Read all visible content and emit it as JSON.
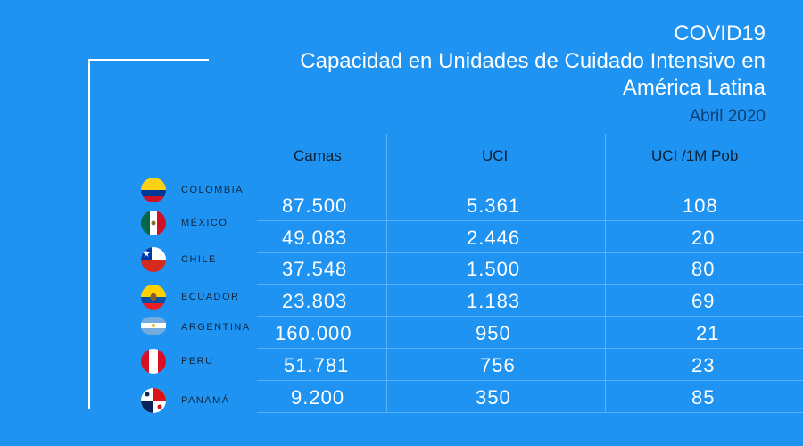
{
  "title": {
    "line1": "COVID19",
    "line2": "Capacidad en Unidades de Cuidado Intensivo en",
    "line3": "América Latina",
    "date": "Abril 2020"
  },
  "colors": {
    "background": "#1f93f2",
    "text": "#ffffff",
    "header_text": "#0c1f33",
    "date_text": "#0d3f73"
  },
  "chart_data": {
    "type": "table",
    "title": "COVID19 Capacidad en Unidades de Cuidado Intensivo en América Latina",
    "subtitle": "Abril 2020",
    "columns": [
      "Camas",
      "UCI",
      "UCI /1M Pob"
    ],
    "rows": [
      {
        "country": "COLOMBIA",
        "flag": "colombia-flag-icon",
        "values": [
          "87.500",
          "5.361",
          "108"
        ]
      },
      {
        "country": "MÉXICO",
        "flag": "mexico-flag-icon",
        "values": [
          "49.083",
          "2.446",
          "20"
        ]
      },
      {
        "country": "CHILE",
        "flag": "chile-flag-icon",
        "values": [
          "37.548",
          "1.500",
          "80"
        ]
      },
      {
        "country": "ECUADOR",
        "flag": "ecuador-flag-icon",
        "values": [
          "23.803",
          "1.183",
          "69"
        ]
      },
      {
        "country": "ARGENTINA",
        "flag": "argentina-flag-icon",
        "values": [
          "160.000",
          "950",
          "21"
        ]
      },
      {
        "country": "PERU",
        "flag": "peru-flag-icon",
        "values": [
          "51.781",
          "756",
          "23"
        ]
      },
      {
        "country": "PANAMÁ",
        "flag": "panama-flag-icon",
        "values": [
          "9.200",
          "350",
          "85"
        ]
      }
    ]
  }
}
